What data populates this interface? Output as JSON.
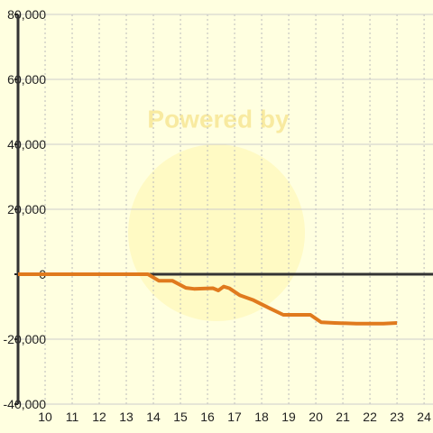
{
  "chart_data": {
    "type": "line",
    "watermark": "Powered by",
    "x": [
      9,
      13.8,
      14.2,
      14.7,
      15.2,
      15.5,
      16.2,
      16.4,
      16.6,
      16.8,
      17.2,
      17.7,
      18.3,
      18.8,
      19.3,
      19.8,
      20.2,
      20.7,
      21.5,
      22.5,
      23
    ],
    "series": [
      {
        "color": "#e07a1e",
        "values": [
          0,
          0,
          -2000,
          -2000,
          -4200,
          -4500,
          -4300,
          -5000,
          -3800,
          -4300,
          -6500,
          -8000,
          -10500,
          -12500,
          -12500,
          -12500,
          -14800,
          -15000,
          -15200,
          -15200,
          -15000
        ]
      }
    ],
    "xlim": [
      9,
      24.33
    ],
    "xticks": [
      10,
      11,
      12,
      13,
      14,
      15,
      16,
      17,
      18,
      19,
      20,
      21,
      22,
      23,
      24
    ],
    "ylim": [
      -40000,
      80000
    ],
    "yticks": [
      {
        "value": -40000,
        "label": "-40,000"
      },
      {
        "value": -20000,
        "label": "-20,000"
      },
      0,
      {
        "value": 20000,
        "label": "20,000"
      },
      {
        "value": 40000,
        "label": "40,000"
      },
      {
        "value": 60000,
        "label": "60,000"
      },
      {
        "value": 80000,
        "label": "80,000"
      }
    ],
    "grid": true
  }
}
